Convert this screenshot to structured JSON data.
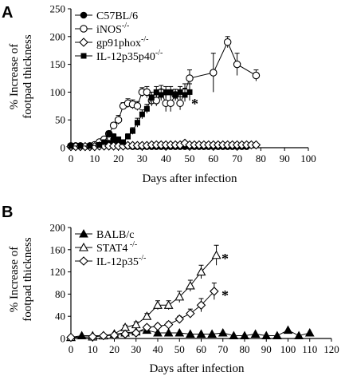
{
  "chart_data": [
    {
      "panel": "A",
      "type": "line",
      "xlabel": "Days after infection",
      "ylabel_lines": [
        "% Increase of",
        "footpad thickness"
      ],
      "xlim": [
        0,
        100
      ],
      "ylim": [
        0,
        250
      ],
      "x_ticks": [
        "0",
        "10",
        "20",
        "30",
        "40",
        "50",
        "60",
        "70",
        "80",
        "90",
        "100"
      ],
      "y_ticks": [
        "0",
        "50",
        "100",
        "150",
        "200",
        "250"
      ],
      "legend": [
        "C57BL/6",
        "iNOS",
        "gp91phox",
        "IL-12p35p40"
      ],
      "legend_sup": [
        "",
        "-/-",
        "-/-",
        "-/-"
      ],
      "annotation": "*",
      "series": [
        {
          "name": "C57BL/6",
          "marker": "filled-circle",
          "x": [
            0,
            2,
            4,
            6,
            8,
            10,
            12,
            14,
            16,
            18,
            20,
            22,
            24,
            26,
            28,
            30,
            32,
            34,
            36,
            38,
            40,
            42,
            44,
            46,
            48,
            50,
            52,
            54,
            56,
            58,
            60,
            62,
            64,
            66,
            68,
            70,
            72,
            74
          ],
          "y": [
            2,
            2,
            2,
            2,
            2,
            3,
            4,
            5,
            8,
            15,
            10,
            5,
            3,
            2,
            2,
            2,
            2,
            2,
            2,
            2,
            2,
            2,
            2,
            2,
            2,
            2,
            2,
            2,
            2,
            2,
            2,
            2,
            2,
            2,
            2,
            2,
            2,
            2
          ]
        },
        {
          "name": "iNOS",
          "marker": "open-circle",
          "x": [
            0,
            2,
            4,
            8,
            10,
            12,
            14,
            16,
            18,
            20,
            22,
            24,
            26,
            28,
            30,
            32,
            34,
            36,
            38,
            40,
            42,
            44,
            46,
            48,
            50,
            60,
            66,
            70,
            78
          ],
          "y": [
            3,
            3,
            3,
            3,
            5,
            10,
            15,
            25,
            40,
            50,
            75,
            80,
            78,
            75,
            100,
            100,
            85,
            85,
            100,
            80,
            80,
            95,
            80,
            100,
            125,
            135,
            190,
            150,
            130
          ],
          "err": [
            1,
            1,
            1,
            1,
            1,
            2,
            3,
            4,
            5,
            8,
            6,
            8,
            8,
            8,
            8,
            10,
            10,
            10,
            12,
            15,
            15,
            10,
            12,
            15,
            15,
            35,
            10,
            20,
            10
          ]
        },
        {
          "name": "gp91phox",
          "marker": "open-diamond",
          "x": [
            0,
            2,
            4,
            6,
            8,
            10,
            12,
            14,
            16,
            18,
            20,
            22,
            24,
            26,
            28,
            30,
            32,
            34,
            36,
            38,
            40,
            42,
            44,
            46,
            48,
            50,
            52,
            54,
            56,
            58,
            60,
            62,
            64,
            66,
            68,
            70,
            72,
            74,
            76,
            78
          ],
          "y": [
            2,
            2,
            2,
            2,
            2,
            2,
            3,
            3,
            3,
            3,
            3,
            3,
            4,
            4,
            4,
            4,
            4,
            5,
            5,
            5,
            5,
            5,
            5,
            5,
            8,
            5,
            5,
            5,
            5,
            5,
            5,
            5,
            5,
            5,
            5,
            5,
            5,
            5,
            5,
            5
          ]
        },
        {
          "name": "IL-12p35p40",
          "marker": "filled-square",
          "x": [
            0,
            4,
            8,
            12,
            14,
            16,
            18,
            20,
            22,
            24,
            26,
            28,
            30,
            32,
            34,
            36,
            38,
            40,
            42,
            44,
            46,
            48,
            50
          ],
          "y": [
            3,
            3,
            3,
            5,
            10,
            25,
            20,
            15,
            10,
            20,
            30,
            45,
            60,
            70,
            90,
            100,
            95,
            100,
            100,
            95,
            100,
            95,
            100
          ],
          "err": [
            1,
            1,
            1,
            2,
            3,
            5,
            5,
            4,
            3,
            5,
            6,
            8,
            8,
            8,
            10,
            10,
            10,
            10,
            10,
            10,
            10,
            12,
            15
          ]
        }
      ]
    },
    {
      "panel": "B",
      "type": "line",
      "xlabel": "Days after infection",
      "ylabel_lines": [
        "% Increase of",
        "footpad thickness"
      ],
      "xlim": [
        0,
        120
      ],
      "ylim": [
        0,
        200
      ],
      "x_ticks": [
        "0",
        "10",
        "20",
        "30",
        "40",
        "50",
        "60",
        "70",
        "80",
        "90",
        "100",
        "110",
        "120"
      ],
      "y_ticks": [
        "0",
        "40",
        "80",
        "120",
        "160",
        "200"
      ],
      "legend": [
        "BALB/c",
        "STAT4",
        "IL-12p35"
      ],
      "legend_sup": [
        "",
        " -/-",
        "-/-"
      ],
      "annotations": [
        "*",
        "*"
      ],
      "series": [
        {
          "name": "BALB/c",
          "marker": "filled-triangle",
          "x": [
            0,
            5,
            10,
            15,
            20,
            25,
            30,
            35,
            40,
            45,
            50,
            55,
            60,
            65,
            70,
            75,
            80,
            85,
            90,
            95,
            100,
            105,
            110
          ],
          "y": [
            2,
            5,
            5,
            5,
            8,
            10,
            12,
            15,
            10,
            10,
            10,
            8,
            8,
            8,
            10,
            5,
            5,
            8,
            5,
            5,
            15,
            5,
            10
          ]
        },
        {
          "name": "STAT4",
          "marker": "open-triangle",
          "x": [
            0,
            10,
            15,
            20,
            25,
            30,
            35,
            40,
            45,
            50,
            55,
            60,
            67
          ],
          "y": [
            2,
            3,
            5,
            8,
            20,
            25,
            40,
            60,
            60,
            75,
            95,
            120,
            150
          ],
          "err": [
            1,
            1,
            1,
            2,
            4,
            5,
            5,
            8,
            8,
            10,
            10,
            12,
            18
          ]
        },
        {
          "name": "IL-12p35",
          "marker": "open-diamond",
          "x": [
            0,
            10,
            15,
            20,
            25,
            30,
            35,
            40,
            45,
            50,
            55,
            60,
            66
          ],
          "y": [
            2,
            3,
            5,
            6,
            8,
            10,
            20,
            22,
            25,
            35,
            45,
            60,
            85
          ],
          "err": [
            1,
            1,
            1,
            2,
            2,
            3,
            4,
            4,
            5,
            5,
            8,
            12,
            15
          ]
        }
      ]
    }
  ]
}
